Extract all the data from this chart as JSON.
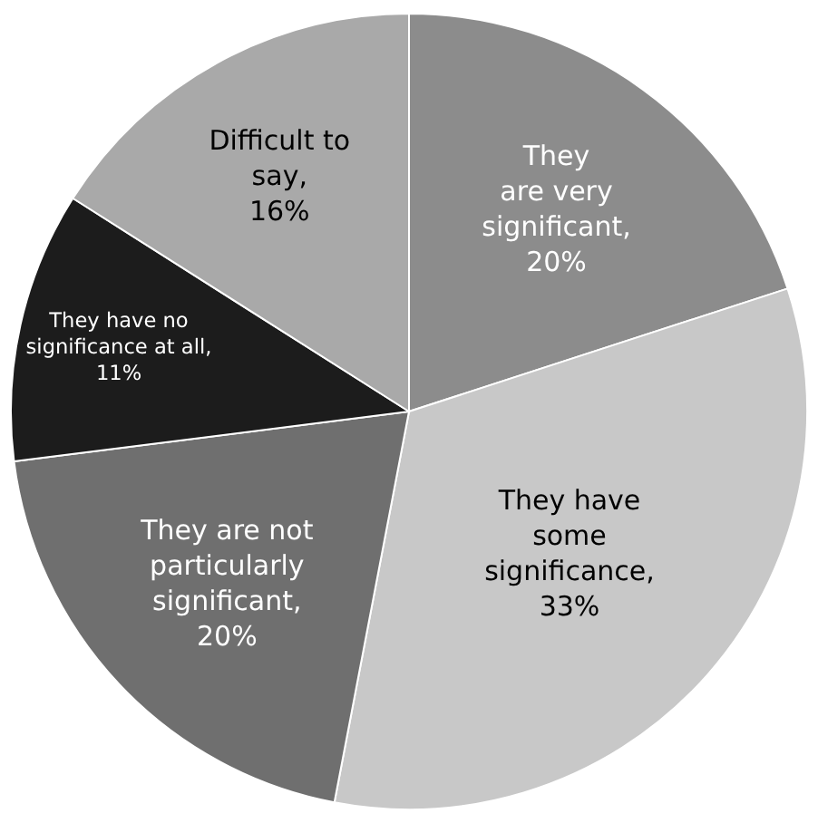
{
  "chart_data": {
    "type": "pie",
    "categories": [
      "They\nare very\nsignificant",
      "They have\nsome\nsignificance",
      "They are not\nparticularly\nsignificant",
      "They have no\nsignificance at all",
      "Difficult to\nsay"
    ],
    "values": [
      20,
      33,
      20,
      11,
      16
    ],
    "value_labels": [
      ",\n20%",
      ",\n33%",
      ",\n20%",
      ",\n11%",
      ",\n16%"
    ],
    "colors": [
      "#8c8c8c",
      "#c8c8c8",
      "#6f6f6f",
      "#1c1c1c",
      "#a9a9a9"
    ]
  }
}
